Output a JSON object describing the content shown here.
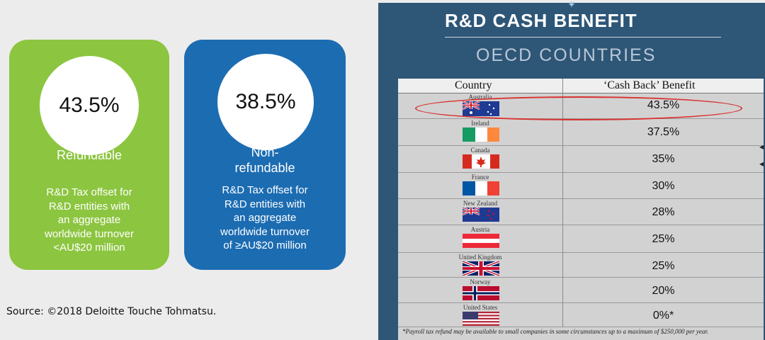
{
  "cards": [
    {
      "percent": "43.5%",
      "label": "Refundable",
      "desc": [
        "R&D Tax offset for",
        "R&D entities with",
        "an aggregate",
        "worldwide turnover",
        "<AU$20 million"
      ]
    },
    {
      "percent": "38.5%",
      "label_lines": [
        "Non-",
        "refundable"
      ],
      "desc": [
        "R&D Tax offset for",
        "R&D entities with",
        "an aggregate",
        "worldwide turnover",
        "of ≥AU$20 million"
      ]
    }
  ],
  "source": "Source: ©2018 Deloitte Touche Tohmatsu.",
  "panel": {
    "title": "R&D CASH BENEFIT",
    "subtitle": "OECD COUNTRIES",
    "headers": {
      "country": "Country",
      "benefit": "‘Cash Back’ Benefit"
    },
    "rows": [
      {
        "country": "Australia",
        "benefit": "43.5%",
        "flag": "australia-flag"
      },
      {
        "country": "Ireland",
        "benefit": "37.5%",
        "flag": "ireland-flag"
      },
      {
        "country": "Canada",
        "benefit": "35%",
        "flag": "canada-flag"
      },
      {
        "country": "France",
        "benefit": "30%",
        "flag": "france-flag"
      },
      {
        "country": "New Zealand",
        "benefit": "28%",
        "flag": "new-zealand-flag"
      },
      {
        "country": "Austria",
        "benefit": "25%",
        "flag": "austria-flag"
      },
      {
        "country": "United Kingdom",
        "benefit": "25%",
        "flag": "uk-flag"
      },
      {
        "country": "Norway",
        "benefit": "20%",
        "flag": "norway-flag"
      },
      {
        "country": "United States",
        "benefit": "0%*",
        "flag": "us-flag"
      }
    ],
    "footnote": "*Payroll tax refund may be available to small companies in some circumstances up to a maximum of $250,000 per year.",
    "highlight_color": "#d9312f"
  },
  "colors": {
    "green": "#8cc540",
    "blue": "#1c6cb2",
    "panel": "#2e5677"
  }
}
